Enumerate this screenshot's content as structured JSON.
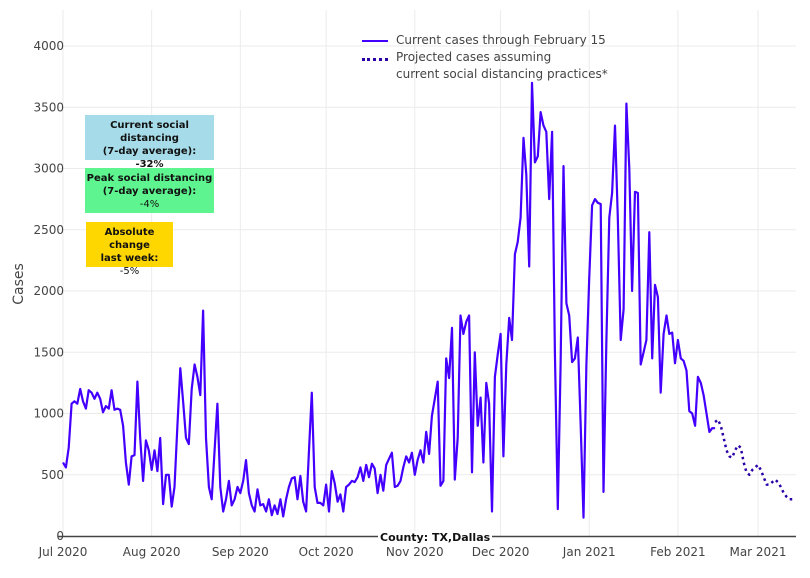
{
  "chart_data": {
    "type": "line",
    "xlabel": "",
    "ylabel": "Cases",
    "ylim": [
      0,
      4000
    ],
    "yticks": [
      0,
      500,
      1000,
      1500,
      2000,
      2500,
      3000,
      3500,
      4000
    ],
    "xtick_labels": [
      "Jul 2020",
      "Aug 2020",
      "Sep 2020",
      "Oct 2020",
      "Nov 2020",
      "Dec 2020",
      "Jan 2021",
      "Feb 2021",
      "Mar 2021"
    ],
    "xtick_day_offsets": [
      0,
      31,
      62,
      92,
      123,
      153,
      184,
      215,
      243
    ],
    "x_start": "2020-07-01",
    "grid": true,
    "legend_position": "top-center",
    "annotation": "County: TX,Dallas",
    "series": [
      {
        "name": "Current cases through February 15",
        "style": "solid",
        "color": "#4400ff",
        "start_day": 0,
        "values": [
          600,
          560,
          720,
          1080,
          1100,
          1080,
          1200,
          1100,
          1040,
          1190,
          1170,
          1120,
          1170,
          1120,
          1010,
          1060,
          1040,
          1190,
          1030,
          1040,
          1030,
          900,
          600,
          420,
          650,
          660,
          1260,
          800,
          450,
          780,
          700,
          540,
          700,
          530,
          800,
          260,
          500,
          500,
          240,
          400,
          900,
          1370,
          1100,
          800,
          750,
          1200,
          1400,
          1300,
          1150,
          1840,
          800,
          400,
          300,
          700,
          1080,
          400,
          200,
          300,
          450,
          250,
          300,
          400,
          350,
          450,
          620,
          350,
          250,
          200,
          380,
          250,
          260,
          200,
          300,
          170,
          250,
          180,
          300,
          160,
          300,
          400,
          470,
          480,
          300,
          490,
          280,
          200,
          700,
          1170,
          400,
          270,
          270,
          250,
          420,
          200,
          530,
          430,
          280,
          340,
          200,
          400,
          420,
          450,
          440,
          480,
          560,
          450,
          580,
          480,
          590,
          550,
          350,
          500,
          370,
          580,
          630,
          680,
          400,
          410,
          450,
          560,
          650,
          600,
          680,
          500,
          620,
          700,
          600,
          850,
          670,
          980,
          1120,
          1260,
          410,
          450,
          1450,
          1290,
          1700,
          460,
          800,
          1800,
          1650,
          1750,
          1800,
          520,
          1500,
          900,
          1130,
          600,
          1250,
          1080,
          200,
          1300,
          1480,
          1650,
          650,
          1400,
          1780,
          1600,
          2300,
          2400,
          2600,
          3250,
          2950,
          2200,
          3700,
          3050,
          3100,
          3460,
          3350,
          3300,
          2750,
          3300,
          1500,
          220,
          1400,
          3020,
          1900,
          1800,
          1420,
          1450,
          1620,
          900,
          150,
          1400,
          2100,
          2700,
          2750,
          2720,
          2710,
          360,
          1600,
          2600,
          2800,
          3350,
          2600,
          1600,
          1850,
          3530,
          3000,
          2000,
          2810,
          2800,
          1400,
          1500,
          1600,
          2480,
          1450,
          2050,
          1950,
          1170,
          1650,
          1800,
          1650,
          1660,
          1410,
          1600,
          1450,
          1430,
          1350,
          1020,
          1000,
          900,
          1300,
          1250,
          1150,
          1000,
          850,
          880,
          880
        ]
      },
      {
        "name": "Projected cases assuming current social distancing practices*",
        "style": "dotted",
        "color": "#2a00a8",
        "start_day": 228,
        "values": [
          930,
          950,
          900,
          800,
          700,
          650,
          640,
          700,
          740,
          720,
          600,
          520,
          500,
          540,
          560,
          580,
          540,
          480,
          420,
          420,
          440,
          460,
          440,
          400,
          350,
          320,
          300,
          300
        ]
      }
    ]
  },
  "legend": {
    "current": "Current cases through February 15",
    "projected_line1": "Projected cases assuming",
    "projected_line2": "current social distancing practices*"
  },
  "info_boxes": {
    "current": {
      "title1": "Current social distancing",
      "title2": "(7-day average):",
      "value": "-32%",
      "color": "#a6dce9"
    },
    "peak": {
      "title1": "Peak social distancing",
      "title2": "(7-day average):",
      "value": "-4%",
      "color": "#5ef590"
    },
    "change": {
      "title1": "Absolute change",
      "title2": "last week:",
      "value": "-5%",
      "color": "#ffd700"
    }
  }
}
